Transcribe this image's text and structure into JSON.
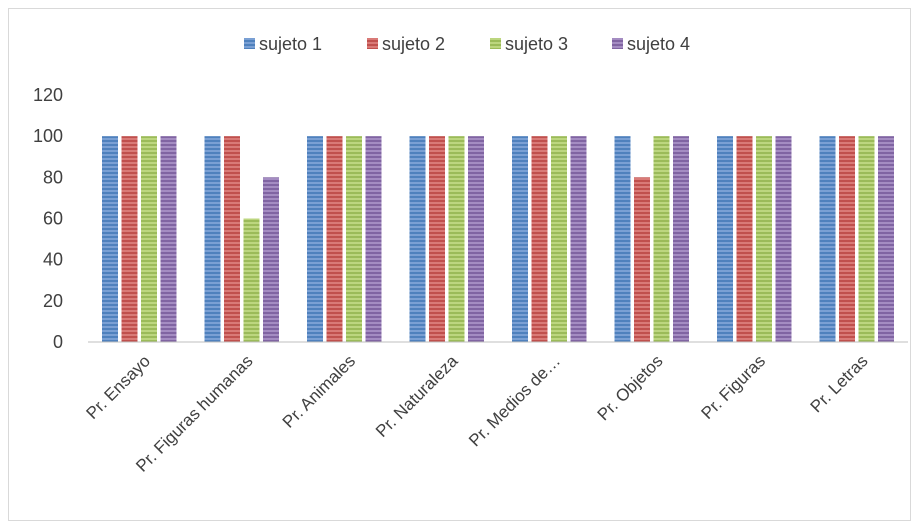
{
  "chart_data": {
    "type": "bar",
    "title": "",
    "xlabel": "",
    "ylabel": "",
    "categories": [
      "Pr. Ensayo",
      "Pr. Figuras humanas",
      "Pr. Animales",
      "Pr. Naturaleza",
      "Pr. Medios de…",
      "Pr. Objetos",
      "Pr. Figuras",
      "Pr. Letras"
    ],
    "series": [
      {
        "name": "sujeto 1",
        "color": "#4f81bd",
        "values": [
          100,
          100,
          100,
          100,
          100,
          100,
          100,
          100
        ]
      },
      {
        "name": "sujeto 2",
        "color": "#c0504d",
        "values": [
          100,
          100,
          100,
          100,
          100,
          80,
          100,
          100
        ]
      },
      {
        "name": "sujeto 3",
        "color": "#9bbb59",
        "values": [
          100,
          60,
          100,
          100,
          100,
          100,
          100,
          100
        ]
      },
      {
        "name": "sujeto 4",
        "color": "#8064a2",
        "values": [
          100,
          80,
          100,
          100,
          100,
          100,
          100,
          100
        ]
      }
    ],
    "ylim": [
      0,
      120
    ],
    "yticks": [
      0,
      20,
      40,
      60,
      80,
      100,
      120
    ],
    "grid": false,
    "legend_position": "top"
  }
}
